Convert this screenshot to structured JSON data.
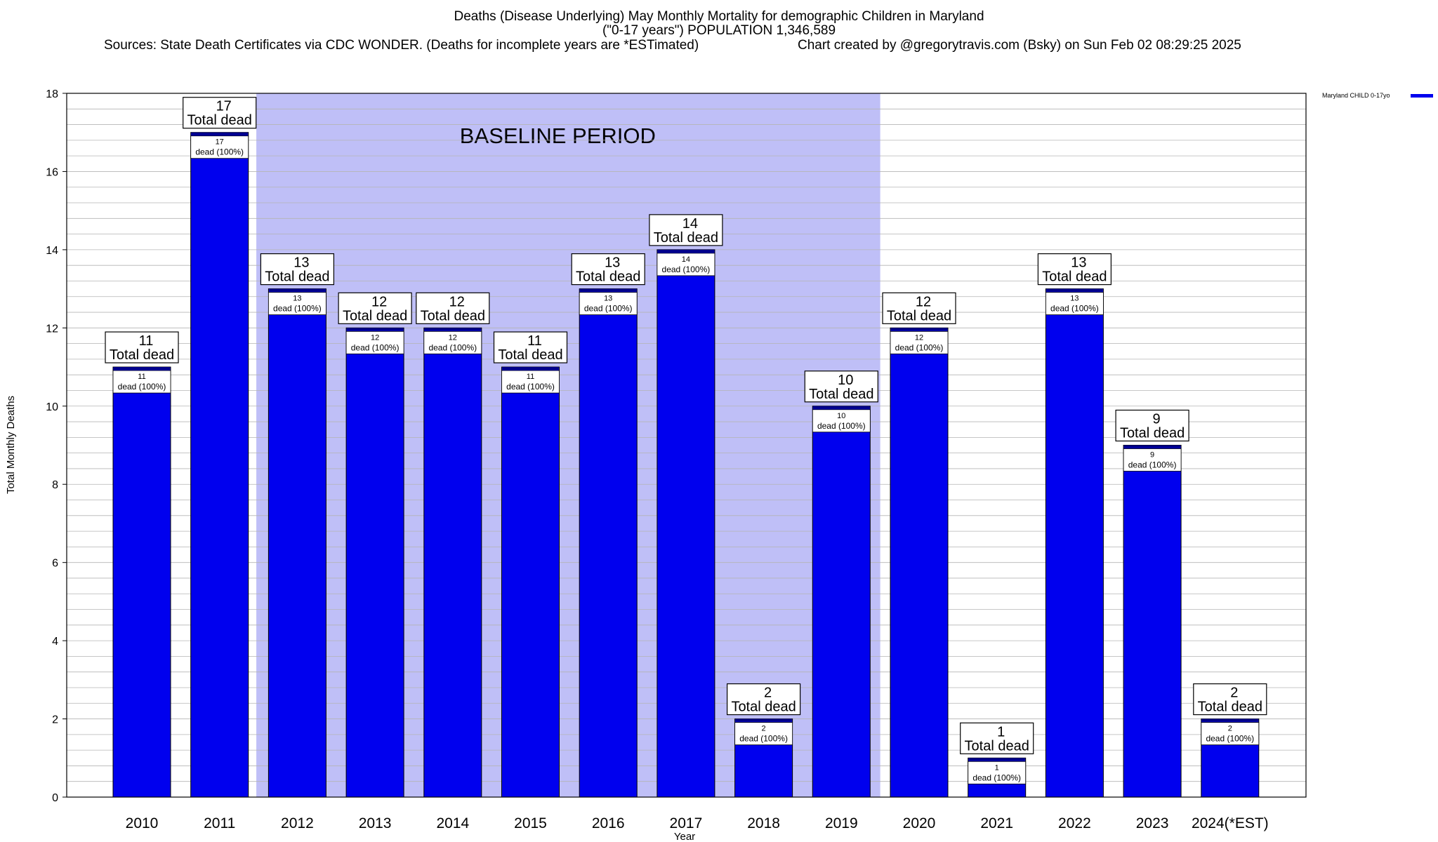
{
  "header": {
    "title_line1": "Deaths (Disease Underlying) May Monthly Mortality for demographic Children in Maryland",
    "title_line2": "(\"0-17 years\") POPULATION 1,346,589",
    "sources": "Sources: State Death Certificates via CDC WONDER. (Deaths for incomplete years are *ESTimated)",
    "credit": "Chart created by @gregorytravis.com (Bsky) on Sun Feb 02 08:29:25 2025"
  },
  "chart_data": {
    "type": "bar",
    "categories": [
      "2010",
      "2011",
      "2012",
      "2013",
      "2014",
      "2015",
      "2016",
      "2017",
      "2018",
      "2019",
      "2020",
      "2021",
      "2022",
      "2023",
      "2024(*EST)"
    ],
    "series": [
      {
        "name": "Maryland CHILD 0-17yo",
        "values": [
          11,
          17,
          13,
          12,
          12,
          11,
          13,
          14,
          2,
          10,
          12,
          1,
          13,
          9,
          2
        ]
      }
    ],
    "xlabel": "Year",
    "ylabel": "Total Monthly Deaths",
    "ylim": [
      0,
      18
    ],
    "yticks": [
      0,
      2,
      4,
      6,
      8,
      10,
      12,
      14,
      16,
      18
    ],
    "grid": true,
    "legend_position": "top-right",
    "baseline_period": {
      "label": "BASELINE PERIOD",
      "from": "2012",
      "to": "2019"
    },
    "total_label_suffix": "Total dead",
    "inner_label_suffix": "dead (100%)",
    "colors": {
      "bar": "#0000ee",
      "bar_cap": "#00008b",
      "baseline_band": "#bfbff7",
      "grid": "#b4b4b4"
    }
  }
}
